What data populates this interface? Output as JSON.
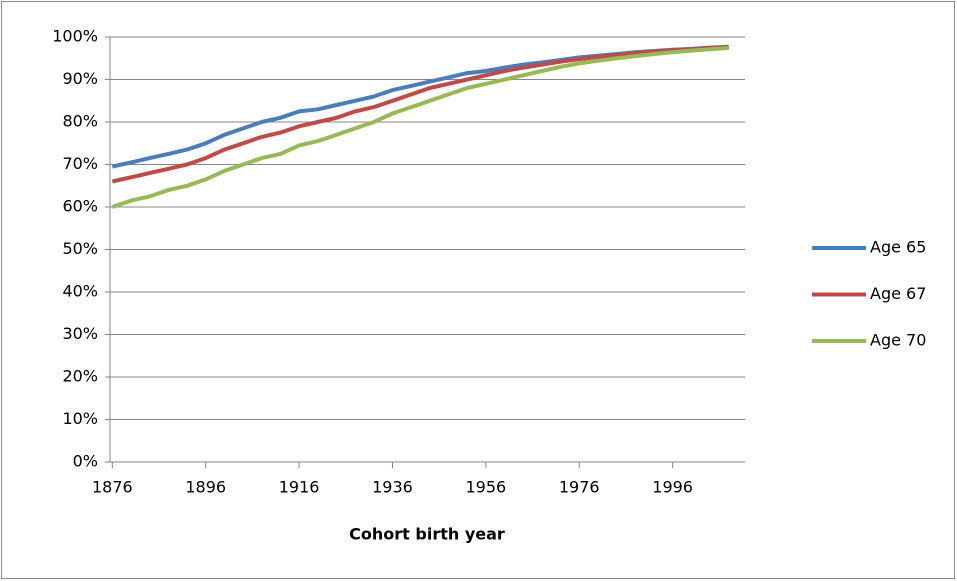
{
  "chart_data": {
    "type": "line",
    "x_label": "Cohort birth year",
    "x": [
      1876,
      1880,
      1884,
      1888,
      1892,
      1896,
      1900,
      1904,
      1908,
      1912,
      1916,
      1920,
      1924,
      1928,
      1932,
      1936,
      1940,
      1944,
      1948,
      1952,
      1956,
      1960,
      1964,
      1968,
      1972,
      1976,
      1980,
      1984,
      1988,
      1992,
      1996,
      2000,
      2004,
      2008
    ],
    "series": [
      {
        "name": "Age 65",
        "color": "#4a7ebb",
        "values": [
          69.5,
          70.5,
          71.5,
          72.5,
          73.5,
          75,
          77,
          78.5,
          80,
          81,
          82.5,
          83,
          84,
          85,
          86,
          87.5,
          88.5,
          89.5,
          90.5,
          91.5,
          92,
          92.8,
          93.5,
          94,
          94.6,
          95.2,
          95.6,
          96,
          96.4,
          96.7,
          97,
          97.2,
          97.5,
          97.7
        ]
      },
      {
        "name": "Age 67",
        "color": "#be4b48",
        "values": [
          66,
          67,
          68,
          69,
          70,
          71.5,
          73.5,
          75,
          76.5,
          77.5,
          79,
          80,
          81,
          82.5,
          83.5,
          85,
          86.5,
          88,
          89,
          90,
          91,
          92,
          92.8,
          93.5,
          94.2,
          94.8,
          95.3,
          95.8,
          96.2,
          96.6,
          96.9,
          97.1,
          97.4,
          97.6
        ]
      },
      {
        "name": "Age 70",
        "color": "#98b954",
        "values": [
          60,
          61.5,
          62.5,
          64,
          65,
          66.5,
          68.5,
          70,
          71.5,
          72.5,
          74.5,
          75.5,
          77,
          78.5,
          80,
          82,
          83.5,
          85,
          86.5,
          88,
          89,
          90,
          91,
          92,
          93,
          93.8,
          94.4,
          95,
          95.5,
          96,
          96.4,
          96.8,
          97.1,
          97.4
        ]
      }
    ],
    "xlim": [
      1875.5,
      2011.5
    ],
    "xticks": [
      1876,
      1896,
      1916,
      1936,
      1956,
      1976,
      1996
    ],
    "ylim": [
      0,
      100
    ],
    "yticks": [
      {
        "value": 0,
        "label": "0%"
      },
      {
        "value": 10,
        "label": "10%"
      },
      {
        "value": 20,
        "label": "20%"
      },
      {
        "value": 30,
        "label": "30%"
      },
      {
        "value": 40,
        "label": "40%"
      },
      {
        "value": 50,
        "label": "50%"
      },
      {
        "value": 60,
        "label": "60%"
      },
      {
        "value": 70,
        "label": "70%"
      },
      {
        "value": 80,
        "label": "80%"
      },
      {
        "value": 90,
        "label": "90%"
      },
      {
        "value": 100,
        "label": "100%"
      }
    ],
    "grid": true,
    "legend": "right"
  }
}
